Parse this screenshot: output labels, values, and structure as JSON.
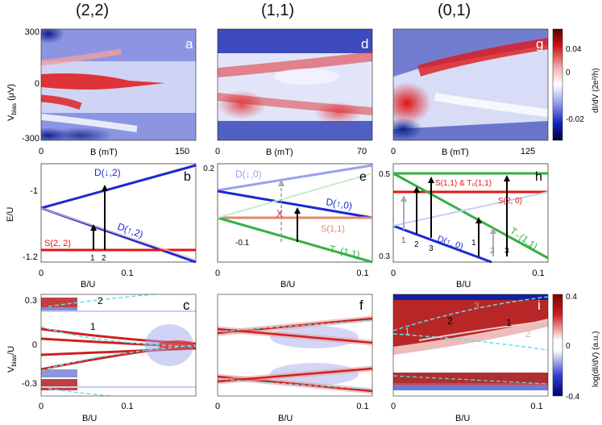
{
  "columns": [
    "(2,2)",
    "(1,1)",
    "(0,1)"
  ],
  "row1": {
    "ylabel_main": "V",
    "ylabel_sub": "bias",
    "ylabel_unit": " (μV)",
    "yticks": [
      "300",
      "0",
      "-300"
    ],
    "xlabel": "B (mT)",
    "panels": [
      {
        "letter": "a",
        "xticks": [
          "0",
          "150"
        ]
      },
      {
        "letter": "d",
        "xticks": [
          "0",
          "70"
        ]
      },
      {
        "letter": "g",
        "xticks": [
          "0",
          "125"
        ]
      }
    ],
    "colorbar": {
      "label": "dI/dV (2e²/h)",
      "ticks": [
        "0.04",
        "0",
        "-0.02"
      ]
    }
  },
  "row2": {
    "xlabel": "B/U",
    "ylabel": "E/U",
    "b": {
      "letter": "b",
      "yticks": [
        "-1",
        "-1.2"
      ],
      "xticks": [
        "0",
        "0.1"
      ],
      "labels": [
        "D(↓,2)",
        "D(↑,2)",
        "S(2, 2)",
        "1",
        "2"
      ]
    },
    "e": {
      "letter": "e",
      "yticks": [
        "0.2",
        "-0.1"
      ],
      "xticks": [
        "0",
        "0.1"
      ],
      "labels": [
        "D(↓,0)",
        "D(↑,0)",
        "S(1,1)",
        "T₋(1,1)",
        "X"
      ]
    },
    "h": {
      "letter": "h",
      "yticks": [
        "0.5",
        "0.3"
      ],
      "xticks": [
        "0",
        "0.1"
      ],
      "labels": [
        "S(1,1) & T₀(1,1)",
        "S(2, 0)",
        "D(↑, 0)",
        "T₋(1,1)",
        "1",
        "2",
        "3",
        "1",
        "2",
        "3"
      ]
    }
  },
  "row3": {
    "xlabel": "B/U",
    "ylabel_main": "V",
    "ylabel_sub": "bias",
    "ylabel_unit": "/U",
    "yticks": [
      "0.3",
      "0",
      "-0.3"
    ],
    "panels": [
      {
        "letter": "c",
        "xticks": [
          "0",
          "0.1"
        ],
        "marks": [
          "2",
          "1"
        ]
      },
      {
        "letter": "f",
        "xticks": [
          "0",
          "0.1"
        ],
        "marks": []
      },
      {
        "letter": "i",
        "xticks": [
          "0",
          "0.1"
        ],
        "marks": [
          "3",
          "2",
          "1",
          "1",
          "2"
        ]
      }
    ],
    "colorbar": {
      "label": "log(dI/dV) (a.u.)",
      "ticks": [
        "0.4",
        "0",
        "-0.4"
      ]
    }
  },
  "colors": {
    "red": "#e01515",
    "blue": "#1a2ad0",
    "green": "#36b044",
    "orange": "#e08a6a",
    "navy": "#0b1a78",
    "cyan": "#5fe0e8",
    "darkred": "#8a0a0a"
  }
}
